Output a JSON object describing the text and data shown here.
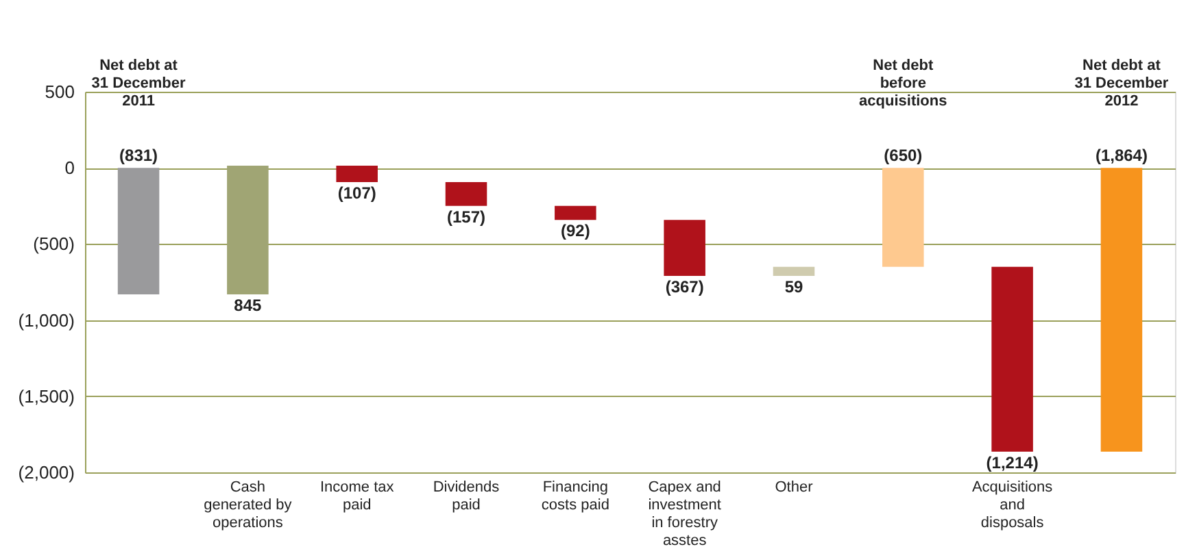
{
  "chart_data": {
    "type": "bar",
    "categories": [
      "Net debt at 31 December 2011",
      "Cash generated by operations",
      "Income tax paid",
      "Dividends paid",
      "Financing costs paid",
      "Capex and investment in forestry asstes",
      "Other",
      "Net debt before acquisitions",
      "Acquisitions and disposals",
      "Net debt at 31 December 2012"
    ],
    "values": [
      -831,
      845,
      -107,
      -157,
      -92,
      -367,
      59,
      -650,
      -1214,
      -1864
    ],
    "base": [
      0,
      -831,
      14,
      -93,
      -250,
      -342,
      -709,
      0,
      -650,
      0
    ],
    "colors": [
      "#9a9a9c",
      "#a0a574",
      "#b0121b",
      "#b0121b",
      "#b0121b",
      "#b0121b",
      "#cfcbae",
      "#fec98f",
      "#b0121b",
      "#f7941d"
    ],
    "value_labels": [
      "(831)",
      "845",
      "(107)",
      "(157)",
      "(92)",
      "(367)",
      "59",
      "(650)",
      "(1,214)",
      "(1,864)"
    ],
    "ylim": [
      -2000,
      500
    ],
    "yticks": [
      {
        "value": 500,
        "label": "500"
      },
      {
        "value": 0,
        "label": "0"
      },
      {
        "value": -500,
        "label": "(500)"
      },
      {
        "value": -1000,
        "label": "(1,000)"
      },
      {
        "value": -1500,
        "label": "(1,500)"
      },
      {
        "value": -2000,
        "label": "(2,000)"
      }
    ],
    "grid": "y"
  }
}
